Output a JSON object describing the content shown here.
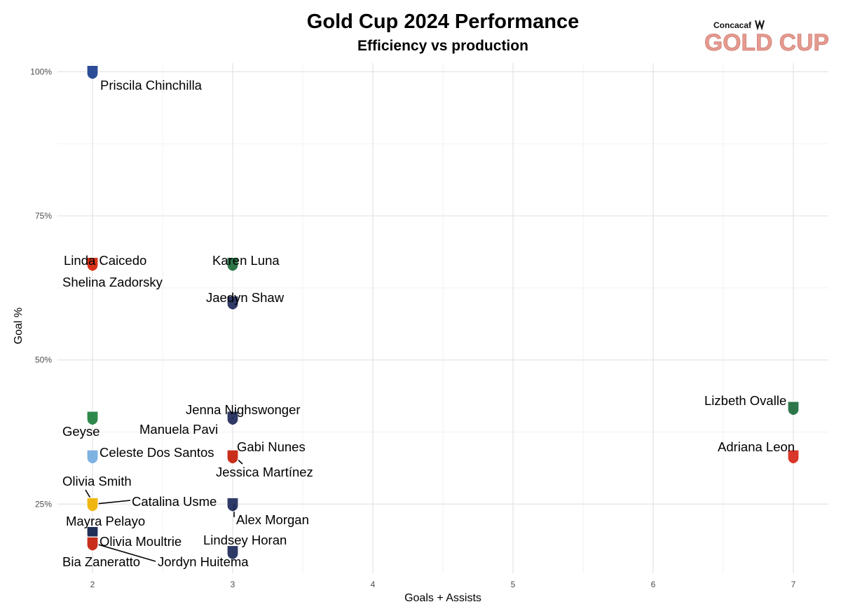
{
  "logo": {
    "brand": "Concacaf",
    "name": "GOLD CUP"
  },
  "chart_data": {
    "type": "scatter",
    "title": "Gold Cup 2024 Performance",
    "subtitle": "Efficiency vs production",
    "xlabel": "Goals + Assists",
    "ylabel": "Goal %",
    "xlim": [
      1.75,
      7.25
    ],
    "ylim": [
      0.13,
      1.015
    ],
    "x_ticks": [
      2,
      3,
      4,
      5,
      6,
      7
    ],
    "x_tick_labels": [
      "2",
      "3",
      "4",
      "5",
      "6",
      "7"
    ],
    "y_ticks": [
      0.25,
      0.5,
      0.75,
      1.0
    ],
    "y_tick_labels": [
      "25%",
      "50%",
      "75%",
      "100%"
    ],
    "grid": true,
    "marker": "team crest",
    "points": [
      {
        "name": "Priscila Chinchilla",
        "x": 2,
        "y": 1.0,
        "team": "CRC"
      },
      {
        "name": "Linda Caicedo",
        "x": 2,
        "y": 0.667,
        "team": "COL"
      },
      {
        "name": "Shelina Zadorsky",
        "x": 2,
        "y": 0.667,
        "team": "CAN"
      },
      {
        "name": "Karen Luna",
        "x": 3,
        "y": 0.667,
        "team": "MEX"
      },
      {
        "name": "Jaedyn Shaw",
        "x": 3,
        "y": 0.6,
        "team": "USA"
      },
      {
        "name": "Lizbeth Ovalle",
        "x": 7,
        "y": 0.417,
        "team": "MEX"
      },
      {
        "name": "Jenna Nighswonger",
        "x": 3,
        "y": 0.4,
        "team": "USA"
      },
      {
        "name": "Geyse",
        "x": 2,
        "y": 0.4,
        "team": "BRA"
      },
      {
        "name": "Manuela Pavi",
        "x": 3,
        "y": 0.333,
        "team": "COL"
      },
      {
        "name": "Gabi Nunes",
        "x": 3,
        "y": 0.333,
        "team": "BRA"
      },
      {
        "name": "Jessica Martínez",
        "x": 3,
        "y": 0.333,
        "team": "PAR"
      },
      {
        "name": "Celeste Dos Santos",
        "x": 2,
        "y": 0.333,
        "team": "ARG"
      },
      {
        "name": "Adriana Leon",
        "x": 7,
        "y": 0.333,
        "team": "CAN"
      },
      {
        "name": "Olivia Smith",
        "x": 2,
        "y": 0.25,
        "team": "CAN"
      },
      {
        "name": "Catalina Usme",
        "x": 2,
        "y": 0.25,
        "team": "COL"
      },
      {
        "name": "Alex Morgan",
        "x": 3,
        "y": 0.25,
        "team": "USA"
      },
      {
        "name": "Mayra Pelayo",
        "x": 2,
        "y": 0.2,
        "team": "MEX"
      },
      {
        "name": "Olivia Moultrie",
        "x": 2,
        "y": 0.2,
        "team": "USA"
      },
      {
        "name": "Bia Zaneratto",
        "x": 2,
        "y": 0.182,
        "team": "BRA"
      },
      {
        "name": "Jordyn Huitema",
        "x": 2,
        "y": 0.182,
        "team": "CAN"
      },
      {
        "name": "Lindsey Horan",
        "x": 3,
        "y": 0.167,
        "team": "USA"
      }
    ],
    "team_colors": {
      "USA": "#1f2a5a",
      "MEX": "#1b6b3a",
      "CAN": "#d62718",
      "COL": "#f3c20f",
      "BRA": "#1d7f3c",
      "ARG": "#74acdf",
      "CRC": "#1c3d8f",
      "PAR": "#d62718"
    }
  }
}
